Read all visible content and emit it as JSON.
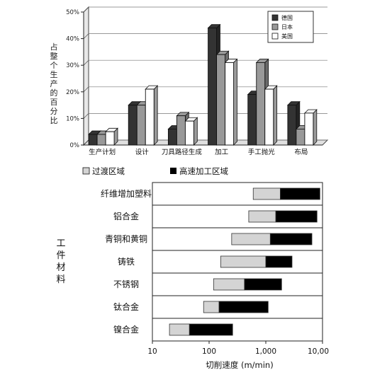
{
  "chart_data": [
    {
      "type": "bar",
      "categories": [
        "生产计划",
        "设计",
        "刀具路径生成",
        "加工",
        "手工抛光",
        "布局"
      ],
      "series": [
        {
          "name": "德国",
          "color": "#333333",
          "values": [
            4,
            15,
            6,
            44,
            19,
            15
          ]
        },
        {
          "name": "日本",
          "color": "#999999",
          "values": [
            4,
            15,
            11,
            34,
            31,
            6
          ]
        },
        {
          "name": "美国",
          "color": "#ffffff",
          "values": [
            5,
            21,
            9,
            31,
            21,
            12
          ]
        }
      ],
      "ylabel": "占整个生产的百分比",
      "ylim": [
        0,
        50
      ],
      "yticks": [
        "0%",
        "10%",
        "20%",
        "30%",
        "40%",
        "50%"
      ],
      "grid": true,
      "legend": "top-right"
    },
    {
      "type": "bar",
      "orientation": "horizontal",
      "categories": [
        "纤维增加塑料",
        "铝合金",
        "青铜和黄铜",
        "铸铁",
        "不锈钢",
        "钛合金",
        "镍合金"
      ],
      "series": [
        {
          "name": "过渡区域",
          "color": "#d4d4d4",
          "ranges": [
            [
              600,
              1800
            ],
            [
              500,
              1500
            ],
            [
              250,
              1200
            ],
            [
              160,
              1000
            ],
            [
              120,
              420
            ],
            [
              80,
              150
            ],
            [
              20,
              45
            ]
          ]
        },
        {
          "name": "高速加工区域",
          "color": "#000000",
          "ranges": [
            [
              1800,
              9000
            ],
            [
              1500,
              8000
            ],
            [
              1200,
              6500
            ],
            [
              1000,
              2900
            ],
            [
              420,
              1900
            ],
            [
              150,
              1100
            ],
            [
              45,
              260
            ]
          ]
        }
      ],
      "xscale": "log",
      "xlim": [
        10,
        10000
      ],
      "xticks": [
        "10",
        "100",
        "1,000",
        "10,00"
      ],
      "xlabel": "切削速度 (m/min)",
      "ylabel": "工件材料",
      "legend": "top"
    }
  ]
}
